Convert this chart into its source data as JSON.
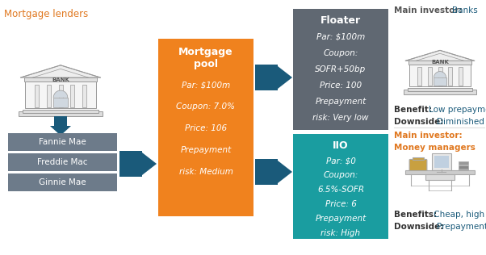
{
  "bg_color": "#ffffff",
  "title_text": "Mortgage lenders",
  "title_color": "#e07820",
  "agency_box_color": "#6d7b8a",
  "agency_text_color": "#ffffff",
  "arrow_color": "#1a5a7a",
  "mortgage_pool": {
    "color": "#f0821e",
    "title": "Mortgage\npool",
    "lines": [
      "Par: $100m",
      "Coupon: 7.0%",
      "Price: 106",
      "Prepayment",
      "risk: Medium"
    ],
    "text_color": "#ffffff"
  },
  "floater": {
    "color": "#606872",
    "title": "Floater",
    "lines": [
      "Par: $100m",
      "Coupon:",
      "SOFR+50bp",
      "Price: 100",
      "Prepayment",
      "risk: Very low"
    ],
    "text_color": "#ffffff"
  },
  "iio": {
    "color": "#1a9da0",
    "title": "IIO",
    "lines": [
      "Par: $0",
      "Coupon:",
      "6.5%-SOFR",
      "Price: 6",
      "Prepayment",
      "risk: High"
    ],
    "text_color": "#ffffff"
  },
  "label_color": "#e07820",
  "benefit_bold_color": "#333333",
  "benefit_value_color": "#1a5a7a",
  "bank_color": "#888888",
  "agencies": [
    "Fannie Mae",
    "Freddie Mac",
    "Ginnie Mae"
  ]
}
